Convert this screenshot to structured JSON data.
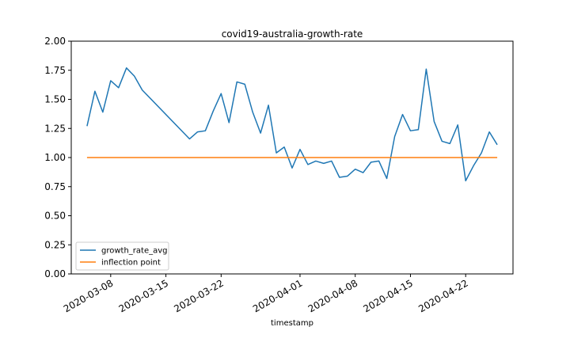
{
  "chart_data": {
    "type": "line",
    "title": "covid19-australia-growth-rate",
    "xlabel": "timestamp",
    "ylabel": "",
    "ylim": [
      0,
      2
    ],
    "xlim": [
      "2020-03-03",
      "2020-04-28"
    ],
    "y_ticks": [
      "0.00",
      "0.25",
      "0.50",
      "0.75",
      "1.00",
      "1.25",
      "1.50",
      "1.75",
      "2.00"
    ],
    "x_ticks": [
      "2020-03-08",
      "2020-03-15",
      "2020-03-22",
      "2020-04-01",
      "2020-04-08",
      "2020-04-15",
      "2020-04-22"
    ],
    "legend_position": "lower-left",
    "grid": false,
    "series": [
      {
        "name": "growth_rate_avg",
        "color": "#1f77b4",
        "points": [
          [
            "2020-03-05",
            1.27
          ],
          [
            "2020-03-06",
            1.57
          ],
          [
            "2020-03-07",
            1.39
          ],
          [
            "2020-03-08",
            1.66
          ],
          [
            "2020-03-09",
            1.6
          ],
          [
            "2020-03-10",
            1.77
          ],
          [
            "2020-03-11",
            1.7
          ],
          [
            "2020-03-12",
            1.58
          ],
          [
            "2020-03-18",
            1.16
          ],
          [
            "2020-03-19",
            1.22
          ],
          [
            "2020-03-20",
            1.23
          ],
          [
            "2020-03-21",
            1.4
          ],
          [
            "2020-03-22",
            1.55
          ],
          [
            "2020-03-23",
            1.3
          ],
          [
            "2020-03-24",
            1.65
          ],
          [
            "2020-03-25",
            1.63
          ],
          [
            "2020-03-26",
            1.39
          ],
          [
            "2020-03-27",
            1.21
          ],
          [
            "2020-03-28",
            1.45
          ],
          [
            "2020-03-29",
            1.04
          ],
          [
            "2020-03-30",
            1.09
          ],
          [
            "2020-03-31",
            0.91
          ],
          [
            "2020-04-01",
            1.07
          ],
          [
            "2020-04-02",
            0.94
          ],
          [
            "2020-04-03",
            0.97
          ],
          [
            "2020-04-04",
            0.95
          ],
          [
            "2020-04-05",
            0.97
          ],
          [
            "2020-04-06",
            0.83
          ],
          [
            "2020-04-07",
            0.84
          ],
          [
            "2020-04-08",
            0.9
          ],
          [
            "2020-04-09",
            0.87
          ],
          [
            "2020-04-10",
            0.96
          ],
          [
            "2020-04-11",
            0.97
          ],
          [
            "2020-04-12",
            0.82
          ],
          [
            "2020-04-13",
            1.18
          ],
          [
            "2020-04-14",
            1.37
          ],
          [
            "2020-04-15",
            1.23
          ],
          [
            "2020-04-16",
            1.24
          ],
          [
            "2020-04-17",
            1.76
          ],
          [
            "2020-04-18",
            1.31
          ],
          [
            "2020-04-19",
            1.14
          ],
          [
            "2020-04-20",
            1.12
          ],
          [
            "2020-04-21",
            1.28
          ],
          [
            "2020-04-22",
            0.8
          ],
          [
            "2020-04-23",
            0.93
          ],
          [
            "2020-04-24",
            1.04
          ],
          [
            "2020-04-25",
            1.22
          ],
          [
            "2020-04-26",
            1.11
          ]
        ]
      },
      {
        "name": "inflection point",
        "color": "#ff7f0e",
        "points": [
          [
            "2020-03-05",
            1.0
          ],
          [
            "2020-04-26",
            1.0
          ]
        ]
      }
    ]
  }
}
